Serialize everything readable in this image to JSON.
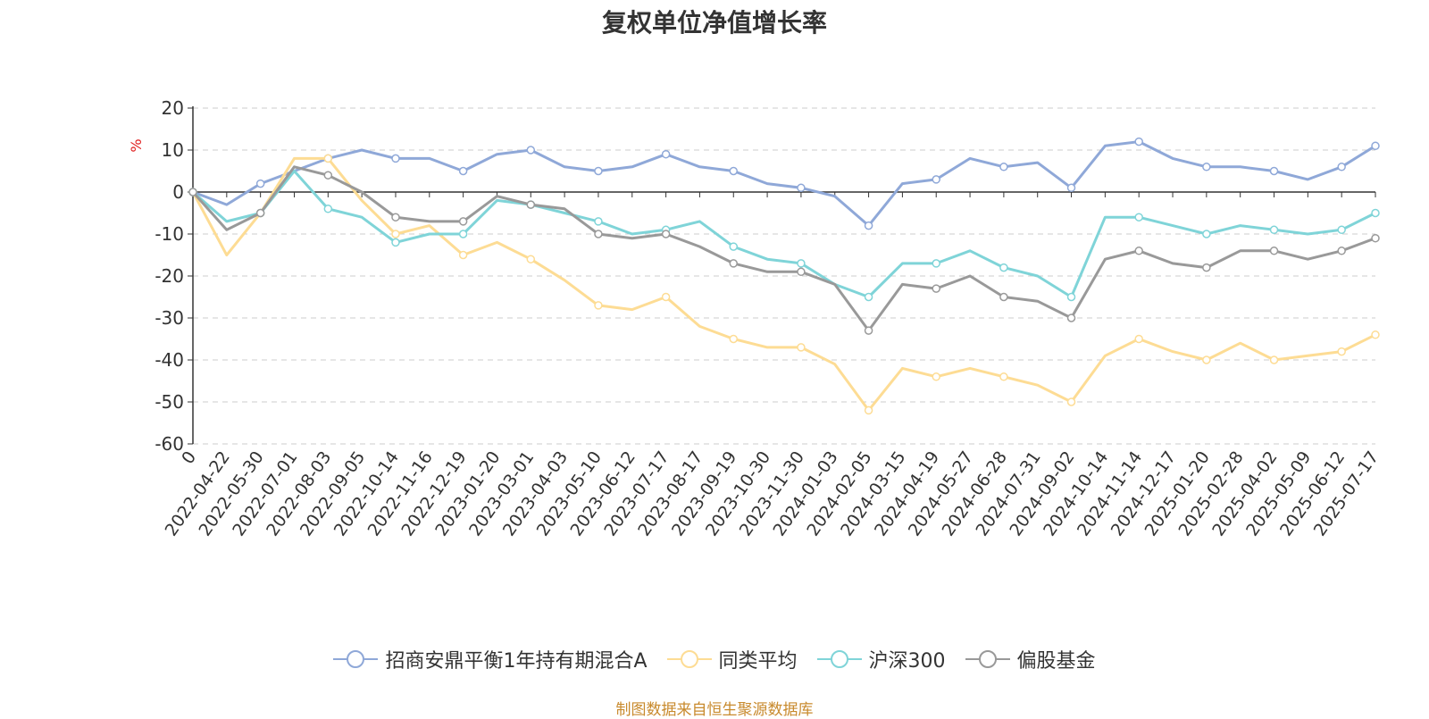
{
  "chart_data": {
    "type": "line",
    "title": "复权单位净值增长率",
    "ylabel": "%",
    "ylim": [
      -60,
      20
    ],
    "yticks": [
      20,
      10,
      0,
      -10,
      -20,
      -30,
      -40,
      -50,
      -60
    ],
    "grid": true,
    "legend_position": "bottom",
    "x": [
      "0",
      "2022-04-22",
      "2022-05-30",
      "2022-07-01",
      "2022-08-03",
      "2022-09-05",
      "2022-10-14",
      "2022-11-16",
      "2022-12-19",
      "2023-01-20",
      "2023-03-01",
      "2023-04-03",
      "2023-05-10",
      "2023-06-12",
      "2023-07-17",
      "2023-08-17",
      "2023-09-19",
      "2023-10-30",
      "2023-11-30",
      "2024-01-03",
      "2024-02-05",
      "2024-03-15",
      "2024-04-19",
      "2024-05-27",
      "2024-06-28",
      "2024-07-31",
      "2024-09-02",
      "2024-10-14",
      "2024-11-14",
      "2024-12-17",
      "2025-01-20",
      "2025-02-28",
      "2025-04-02",
      "2025-05-09",
      "2025-06-12",
      "2025-07-17"
    ],
    "series": [
      {
        "name": "招商安鼎平衡1年持有期混合A",
        "color": "#8fa8d8",
        "values": [
          0,
          -3,
          2,
          5,
          8,
          10,
          8,
          8,
          5,
          9,
          10,
          6,
          5,
          6,
          9,
          6,
          5,
          2,
          1,
          -1,
          -8,
          2,
          3,
          8,
          6,
          7,
          1,
          11,
          12,
          8,
          6,
          6,
          5,
          3,
          6,
          11
        ]
      },
      {
        "name": "同类平均",
        "color": "#fddc94",
        "values": [
          0,
          -15,
          -5,
          8,
          8,
          -2,
          -10,
          -8,
          -15,
          -12,
          -16,
          -21,
          -27,
          -28,
          -25,
          -32,
          -35,
          -37,
          -37,
          -41,
          -52,
          -42,
          -44,
          -42,
          -44,
          -46,
          -50,
          -39,
          -35,
          -38,
          -40,
          -36,
          -40,
          -39,
          -38,
          -34
        ]
      },
      {
        "name": "沪深300",
        "color": "#7fd4d8",
        "values": [
          0,
          -7,
          -5,
          5,
          -4,
          -6,
          -12,
          -10,
          -10,
          -2,
          -3,
          -5,
          -7,
          -10,
          -9,
          -7,
          -13,
          -16,
          -17,
          -22,
          -25,
          -17,
          -17,
          -14,
          -18,
          -20,
          -25,
          -6,
          -6,
          -8,
          -10,
          -8,
          -9,
          -10,
          -9,
          -5
        ]
      },
      {
        "name": "偏股基金",
        "color": "#999999",
        "values": [
          0,
          -9,
          -5,
          6,
          4,
          0,
          -6,
          -7,
          -7,
          -1,
          -3,
          -4,
          -10,
          -11,
          -10,
          -13,
          -17,
          -19,
          -19,
          -22,
          -33,
          -22,
          -23,
          -20,
          -25,
          -26,
          -30,
          -16,
          -14,
          -17,
          -18,
          -14,
          -14,
          -16,
          -14,
          -11
        ]
      }
    ]
  },
  "source_note": "制图数据来自恒生聚源数据库"
}
